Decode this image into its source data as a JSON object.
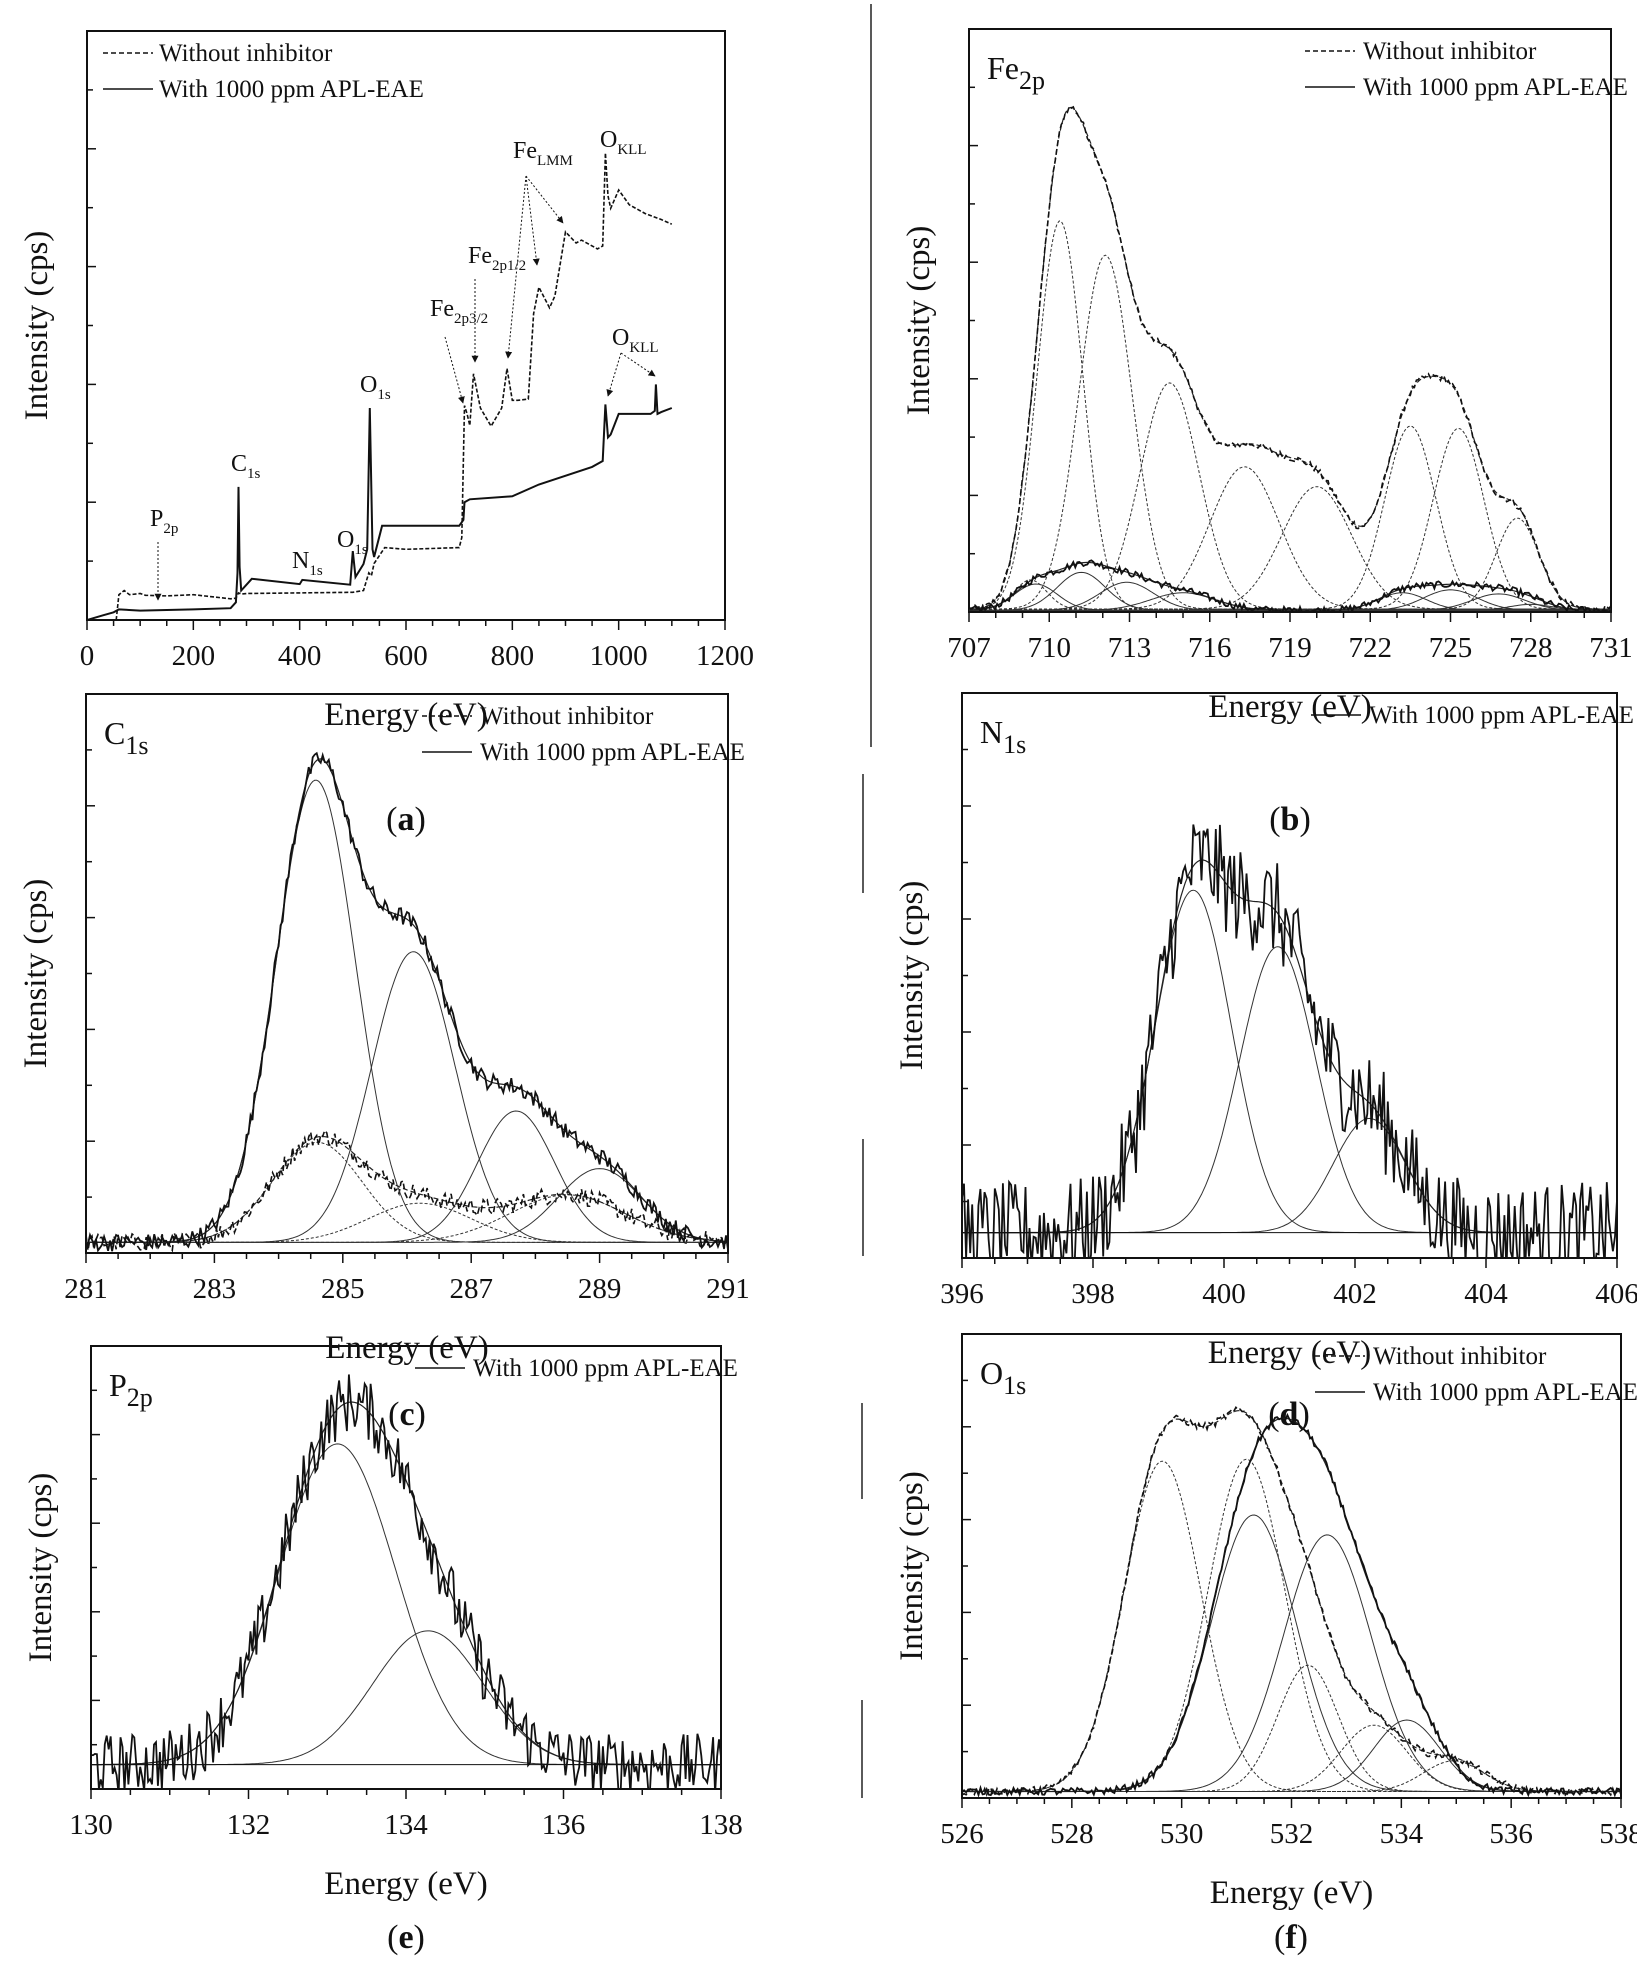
{
  "chart_data": [
    {
      "type": "line",
      "panel_label": "a",
      "xlabel": "Energy (eV)",
      "ylabel": "Intensity (cps)",
      "xlim": [
        0,
        1200
      ],
      "xticks": [
        0,
        200,
        400,
        600,
        800,
        1000,
        1200
      ],
      "ylim": [
        0,
        100
      ],
      "y_tick_labels_shown": false,
      "grid": false,
      "legend_position": "top-left",
      "series": [
        {
          "name": "Without inhibitor",
          "style": "dashed",
          "x": [
            55,
            60,
            70,
            80,
            100,
            110,
            150,
            200,
            270,
            280,
            285,
            290,
            300,
            400,
            500,
            520,
            530,
            535,
            540,
            560,
            600,
            700,
            705,
            710,
            715,
            720,
            727,
            740,
            760,
            780,
            790,
            800,
            810,
            830,
            840,
            850,
            870,
            880,
            900,
            920,
            930,
            960,
            970,
            975,
            980,
            985,
            1000,
            1020,
            1050,
            1080,
            1100
          ],
          "y": [
            0,
            4.3,
            5,
            4.3,
            4.5,
            4.2,
            4.1,
            4.3,
            3.6,
            3.7,
            4.6,
            4.4,
            4.5,
            4.6,
            4.7,
            5,
            8,
            7.5,
            9.6,
            12.3,
            12.0,
            12.3,
            14,
            36.4,
            35,
            33,
            41.8,
            36,
            32.9,
            36,
            42.7,
            37.3,
            37.3,
            37.5,
            52,
            56.5,
            53,
            55,
            65.9,
            64,
            64.5,
            63,
            63.5,
            79.3,
            72,
            69.9,
            73,
            70.5,
            69,
            68,
            67.2
          ]
        },
        {
          "name": "With 1000 ppm APL-EAE",
          "style": "solid",
          "x": [
            0,
            30,
            50,
            60,
            100,
            150,
            200,
            270,
            280,
            283,
            285,
            287,
            290,
            300,
            310,
            400,
            405,
            495,
            500,
            505,
            520,
            527,
            532,
            537,
            540,
            555,
            600,
            700,
            708,
            710,
            720,
            800,
            850,
            950,
            970,
            975,
            980,
            985,
            1000,
            1060,
            1068,
            1070,
            1073,
            1080,
            1100
          ],
          "y": [
            0,
            0.8,
            1.3,
            1.8,
            1.6,
            1.7,
            1.8,
            2,
            3,
            8,
            22.6,
            9,
            5,
            6,
            7,
            6.1,
            6.8,
            6,
            11.7,
            7.3,
            9.5,
            12,
            36,
            12,
            10.7,
            16,
            16,
            16,
            17,
            20,
            20.5,
            21,
            23,
            26,
            27,
            36.6,
            31,
            31.5,
            35,
            35,
            35.5,
            40,
            35,
            35.3,
            36
          ]
        }
      ],
      "annotations": [
        {
          "main": "P",
          "sub": "2p",
          "x": 130
        },
        {
          "main": "C",
          "sub": "1s",
          "x": 285
        },
        {
          "main": "N",
          "sub": "1s",
          "x": 400
        },
        {
          "main": "O",
          "sub": "1s",
          "x": 500
        },
        {
          "main": "O",
          "sub": "1s",
          "x": 532
        },
        {
          "main": "Fe",
          "sub": "2p3/2",
          "x": 710
        },
        {
          "main": "Fe",
          "sub": "2p1/2",
          "x": 727
        },
        {
          "main": "Fe",
          "sub": "LMM",
          "x": [
            790,
            845,
            900
          ]
        },
        {
          "main": "O",
          "sub": "KLL",
          "x": 975
        },
        {
          "main": "O",
          "sub": "KLL",
          "x": [
            975,
            1070
          ]
        }
      ]
    },
    {
      "type": "line",
      "panel_label": "b",
      "title_main": "Fe",
      "title_sub": "2p",
      "xlabel": "Energy (eV)",
      "ylabel": "Intensity (cps)",
      "xlim": [
        707,
        731
      ],
      "xticks": [
        707,
        710,
        713,
        716,
        719,
        722,
        725,
        728,
        731
      ],
      "ylim": [
        0,
        100
      ],
      "grid": false,
      "legend_position": "top-right",
      "series": [
        {
          "name": "Without inhibitor",
          "style": "dashed",
          "baseline": 0.5,
          "components": [
            {
              "center": 709.3,
              "height": 5,
              "sigma": 0.6
            },
            {
              "center": 710.4,
              "height": 66.6,
              "sigma": 0.85
            },
            {
              "center": 712.1,
              "height": 60.7,
              "sigma": 1.0
            },
            {
              "center": 714.5,
              "height": 38.8,
              "sigma": 1.1
            },
            {
              "center": 717.3,
              "height": 24.4,
              "sigma": 1.3
            },
            {
              "center": 720.0,
              "height": 21.0,
              "sigma": 1.3
            },
            {
              "center": 723.5,
              "height": 31.4,
              "sigma": 0.95
            },
            {
              "center": 725.3,
              "height": 31.0,
              "sigma": 0.95
            },
            {
              "center": 727.5,
              "height": 15.6,
              "sigma": 0.8
            }
          ]
        },
        {
          "name": "With 1000 ppm APL-EAE",
          "style": "solid",
          "baseline": 0.3,
          "components": [
            {
              "center": 709.5,
              "height": 4.5,
              "sigma": 0.8
            },
            {
              "center": 711.2,
              "height": 6.5,
              "sigma": 0.9
            },
            {
              "center": 712.9,
              "height": 4.8,
              "sigma": 1.0
            },
            {
              "center": 715.0,
              "height": 3.0,
              "sigma": 1.2
            },
            {
              "center": 723.2,
              "height": 3.0,
              "sigma": 0.9
            },
            {
              "center": 725.0,
              "height": 3.5,
              "sigma": 1.0
            },
            {
              "center": 726.8,
              "height": 2.8,
              "sigma": 1.0
            },
            {
              "center": 728.0,
              "height": 1.0,
              "sigma": 0.8
            }
          ]
        }
      ]
    },
    {
      "type": "line",
      "panel_label": "c",
      "title_main": "C",
      "title_sub": "1s",
      "xlabel": "Energy (eV)",
      "ylabel": "Intensity (cps)",
      "xlim": [
        281,
        291
      ],
      "xticks": [
        281,
        283,
        285,
        287,
        289,
        291
      ],
      "ylim": [
        0,
        100
      ],
      "grid": false,
      "legend_position": "top-right",
      "series": [
        {
          "name": "Without inhibitor",
          "style": "dashed",
          "baseline": 1.9,
          "components": [
            {
              "center": 284.6,
              "height": 17.9,
              "sigma": 0.7
            },
            {
              "center": 286.2,
              "height": 7.0,
              "sigma": 0.8
            },
            {
              "center": 288.5,
              "height": 8.5,
              "sigma": 0.9
            }
          ]
        },
        {
          "name": "With 1000 ppm APL-EAE",
          "style": "solid",
          "baseline": 1.9,
          "components": [
            {
              "center": 284.58,
              "height": 82.7,
              "sigma": 0.62
            },
            {
              "center": 286.1,
              "height": 52.0,
              "sigma": 0.65
            },
            {
              "center": 287.7,
              "height": 23.5,
              "sigma": 0.6
            },
            {
              "center": 289.0,
              "height": 13.2,
              "sigma": 0.65
            }
          ]
        }
      ]
    },
    {
      "type": "line",
      "panel_label": "d",
      "title_main": "N",
      "title_sub": "1s",
      "xlabel": "Energy (eV)",
      "ylabel": "Intensity (cps)",
      "xlim": [
        396,
        406
      ],
      "xticks": [
        396,
        398,
        400,
        402,
        404,
        406
      ],
      "ylim": [
        0,
        100
      ],
      "grid": false,
      "legend_position": "top-right",
      "series": [
        {
          "name": "With 1000 ppm APL-EAE",
          "style": "solid",
          "baseline": 4.5,
          "components": [
            {
              "center": 399.53,
              "height": 60.6,
              "sigma": 0.58
            },
            {
              "center": 400.82,
              "height": 50.6,
              "sigma": 0.58
            },
            {
              "center": 402.22,
              "height": 20.2,
              "sigma": 0.55
            }
          ]
        }
      ]
    },
    {
      "type": "line",
      "panel_label": "e",
      "title_main": "P",
      "title_sub": "2p",
      "xlabel": "Energy (eV)",
      "ylabel": "Intensity (cps)",
      "xlim": [
        130,
        138
      ],
      "xticks": [
        130,
        132,
        134,
        136,
        138
      ],
      "ylim": [
        0,
        100
      ],
      "grid": false,
      "legend_position": "top-right",
      "series": [
        {
          "name": "With 1000 ppm APL-EAE",
          "style": "solid",
          "baseline": 5.5,
          "components": [
            {
              "center": 133.13,
              "height": 72.4,
              "sigma": 0.74
            },
            {
              "center": 134.28,
              "height": 30.2,
              "sigma": 0.7
            }
          ]
        }
      ]
    },
    {
      "type": "line",
      "panel_label": "f",
      "title_main": "O",
      "title_sub": "1s",
      "xlabel": "Energy (eV)",
      "ylabel": "Intensity (cps)",
      "xlim": [
        526,
        538
      ],
      "xticks": [
        526,
        528,
        530,
        532,
        534,
        536,
        538
      ],
      "ylim": [
        0,
        100
      ],
      "grid": false,
      "legend_position": "top-right",
      "series": [
        {
          "name": "Without inhibitor",
          "style": "dashed",
          "baseline": 1.4,
          "components": [
            {
              "center": 529.65,
              "height": 71.2,
              "sigma": 0.7
            },
            {
              "center": 531.18,
              "height": 71.6,
              "sigma": 0.7
            },
            {
              "center": 532.3,
              "height": 27.2,
              "sigma": 0.55
            },
            {
              "center": 533.5,
              "height": 14.3,
              "sigma": 0.6
            },
            {
              "center": 534.95,
              "height": 6.6,
              "sigma": 0.55
            }
          ]
        },
        {
          "name": "With 1000 ppm APL-EAE",
          "style": "solid",
          "baseline": 1.4,
          "components": [
            {
              "center": 531.31,
              "height": 59.6,
              "sigma": 0.78
            },
            {
              "center": 532.65,
              "height": 55.3,
              "sigma": 0.8
            },
            {
              "center": 534.1,
              "height": 15.4,
              "sigma": 0.6
            }
          ]
        }
      ]
    }
  ]
}
